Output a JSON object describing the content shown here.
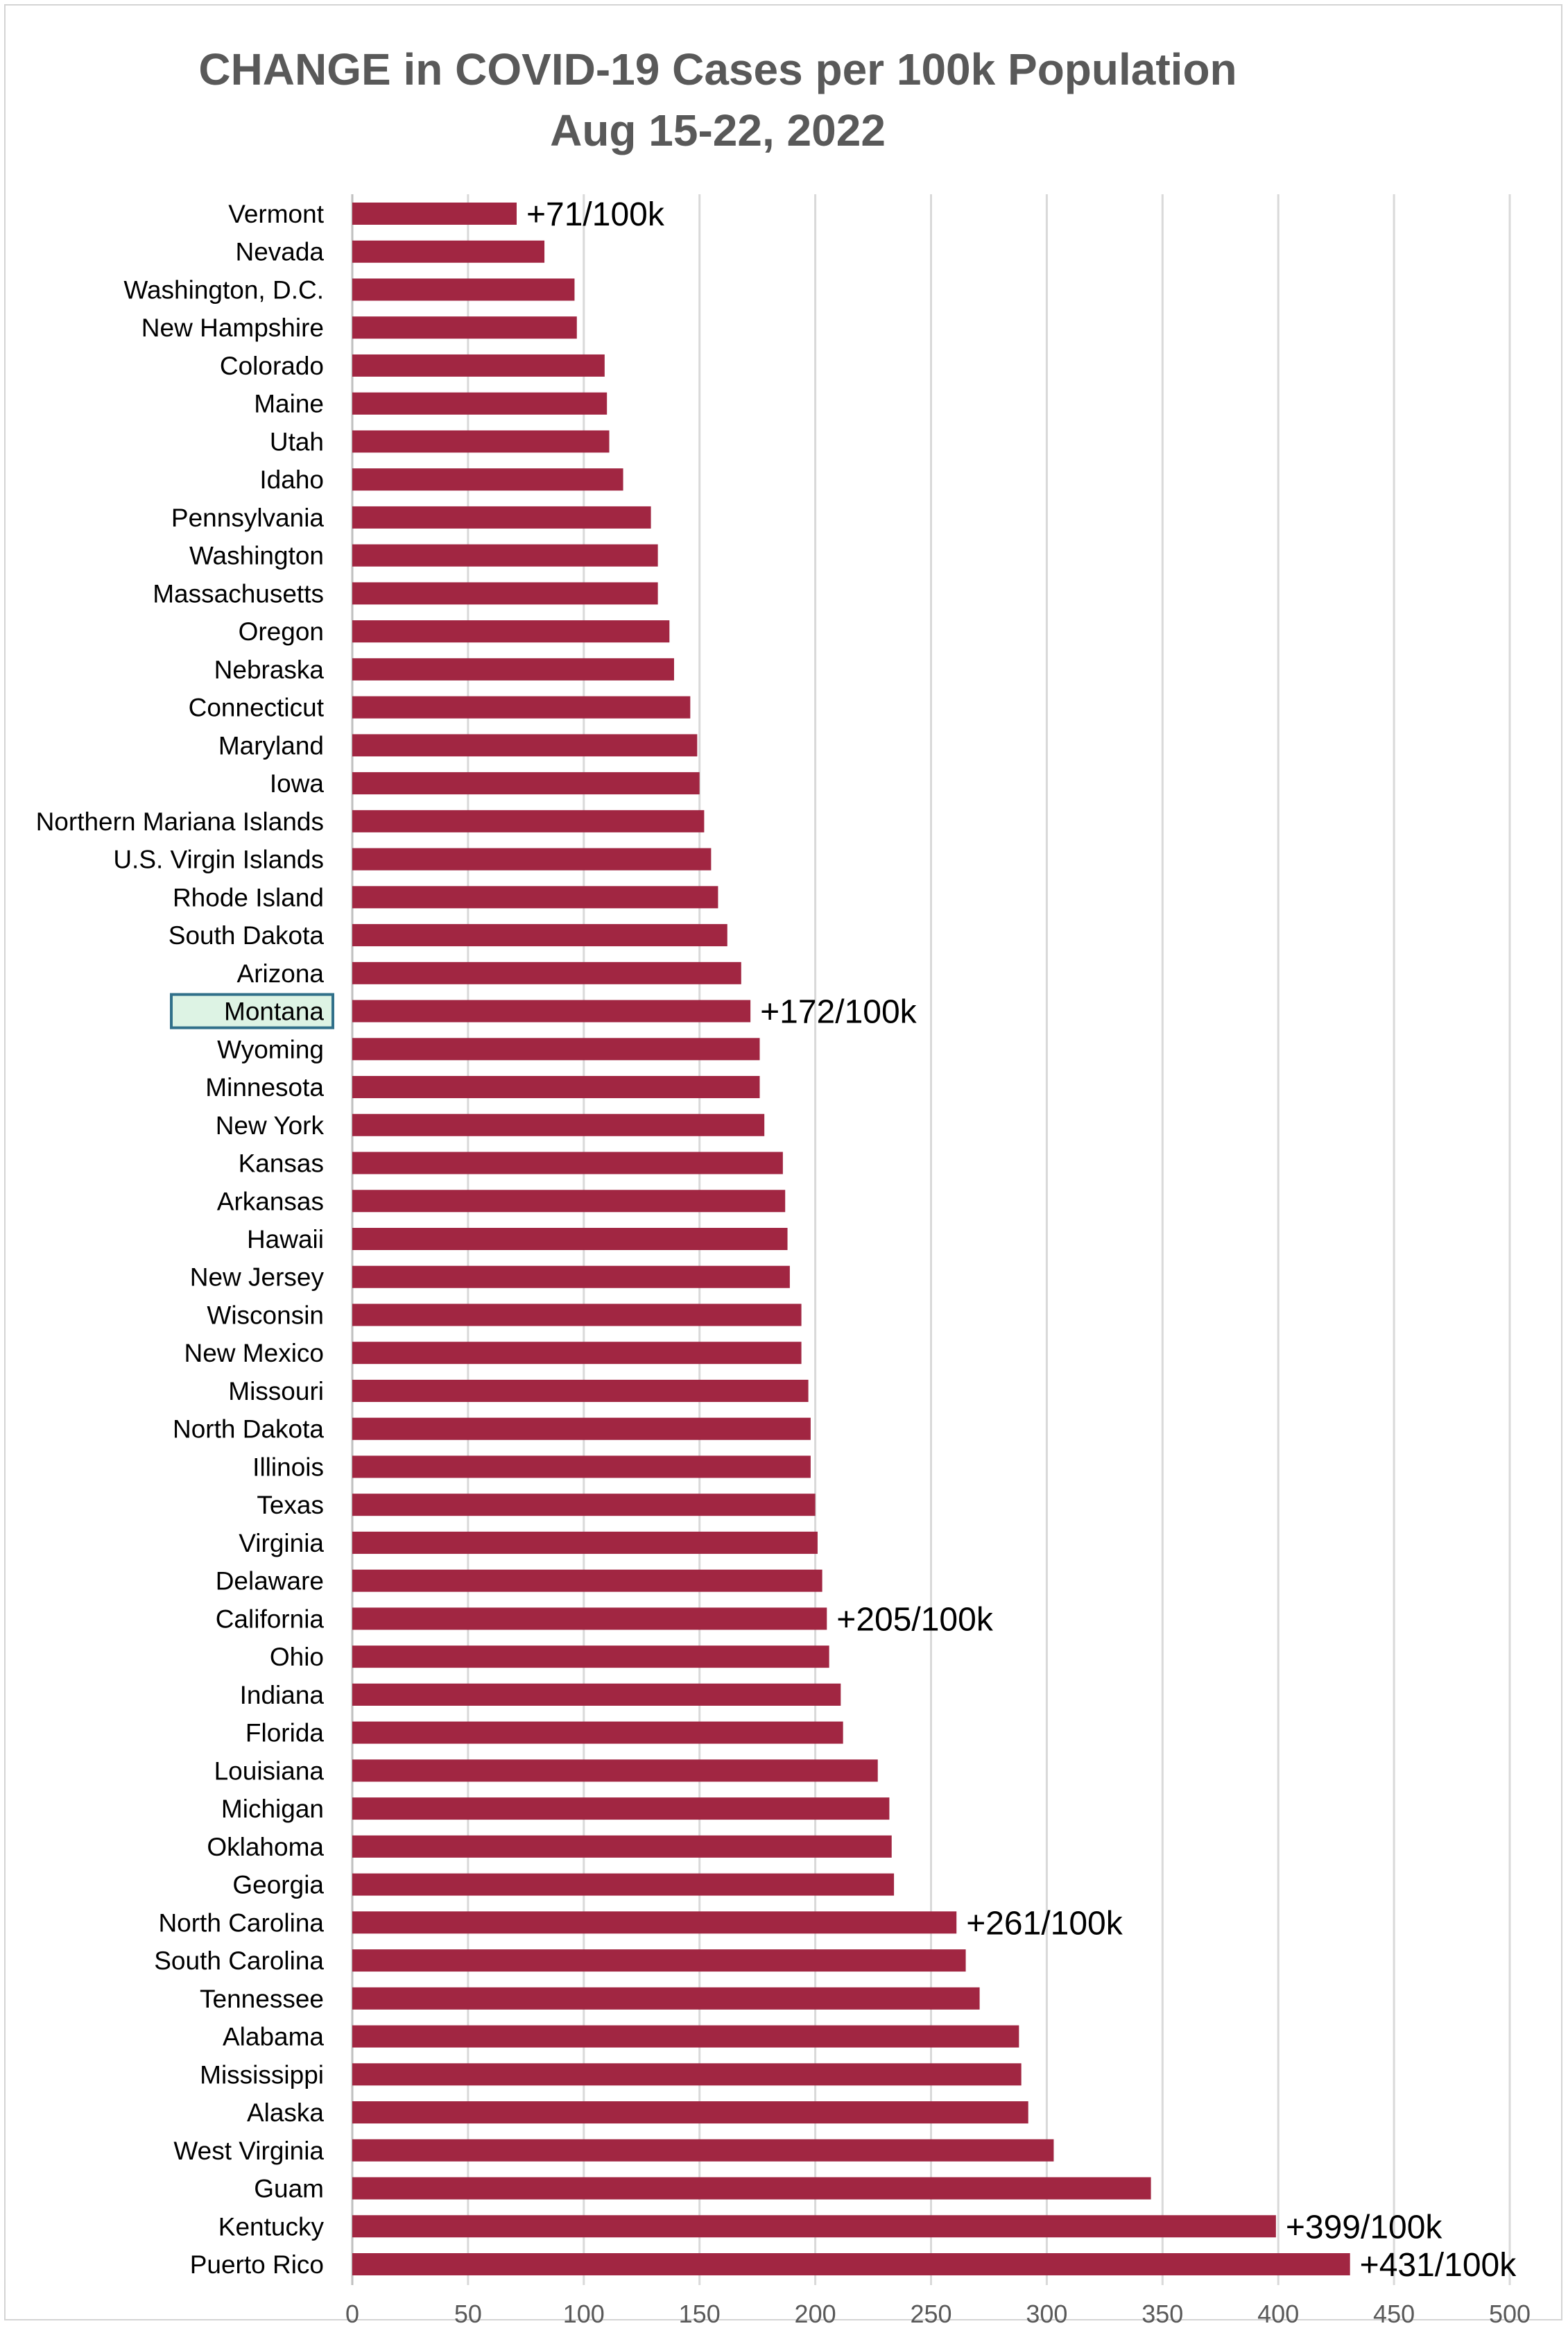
{
  "chart_data": {
    "type": "bar",
    "orientation": "horizontal",
    "title": "CHANGE in COVID-19 Cases per 100k Population",
    "subtitle": "Aug 15-22, 2022",
    "xlabel": "",
    "ylabel": "",
    "xlim": [
      0,
      500
    ],
    "xticks": [
      0,
      50,
      100,
      150,
      200,
      250,
      300,
      350,
      400,
      450,
      500
    ],
    "grid": "vertical",
    "bar_color": "#A12642",
    "highlight_category": "Montana",
    "highlight_fill": "#DDF3E4",
    "highlight_border": "#31708A",
    "categories": [
      "Vermont",
      "Nevada",
      "Washington, D.C.",
      "New Hampshire",
      "Colorado",
      "Maine",
      "Utah",
      "Idaho",
      "Pennsylvania",
      "Washington",
      "Massachusetts",
      "Oregon",
      "Nebraska",
      "Connecticut",
      "Maryland",
      "Iowa",
      "Northern Mariana Islands",
      "U.S. Virgin Islands",
      "Rhode Island",
      "South Dakota",
      "Arizona",
      "Montana",
      "Wyoming",
      "Minnesota",
      "New York",
      "Kansas",
      "Arkansas",
      "Hawaii",
      "New Jersey",
      "Wisconsin",
      "New Mexico",
      "Missouri",
      "North Dakota",
      "Illinois",
      "Texas",
      "Virginia",
      "Delaware",
      "California",
      "Ohio",
      "Indiana",
      "Florida",
      "Louisiana",
      "Michigan",
      "Oklahoma",
      "Georgia",
      "North Carolina",
      "South Carolina",
      "Tennessee",
      "Alabama",
      "Mississippi",
      "Alaska",
      "West Virginia",
      "Guam",
      "Kentucky",
      "Puerto Rico"
    ],
    "values": [
      71,
      83,
      96,
      97,
      109,
      110,
      111,
      117,
      129,
      132,
      132,
      137,
      139,
      146,
      149,
      150,
      152,
      155,
      158,
      162,
      168,
      172,
      176,
      176,
      178,
      186,
      187,
      188,
      189,
      194,
      194,
      197,
      198,
      198,
      200,
      201,
      203,
      205,
      206,
      211,
      212,
      227,
      232,
      233,
      234,
      261,
      265,
      271,
      288,
      289,
      292,
      303,
      345,
      399,
      431
    ],
    "annotations": [
      {
        "category": "Vermont",
        "text": "+71/100k"
      },
      {
        "category": "Montana",
        "text": "+172/100k"
      },
      {
        "category": "California",
        "text": "+205/100k"
      },
      {
        "category": "North Carolina",
        "text": "+261/100k"
      },
      {
        "category": "Kentucky",
        "text": "+399/100k"
      },
      {
        "category": "Puerto Rico",
        "text": "+431/100k"
      }
    ]
  }
}
